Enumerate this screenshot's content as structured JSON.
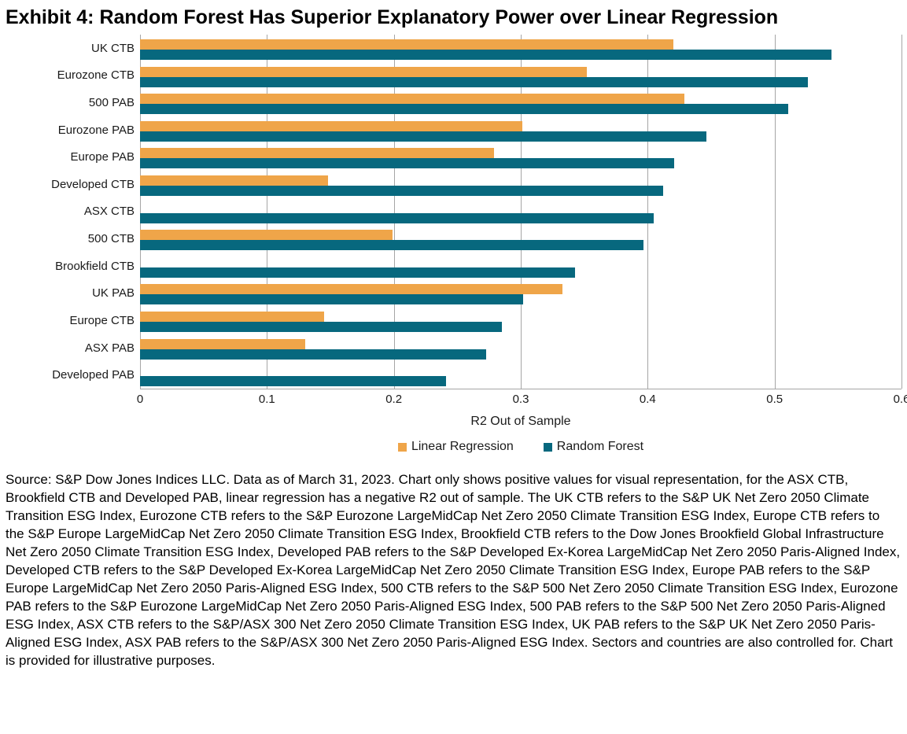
{
  "title": "Exhibit 4: Random Forest Has Superior Explanatory Power over Linear Regression",
  "chart_data": {
    "type": "bar",
    "orientation": "horizontal",
    "title": "Exhibit 4: Random Forest Has Superior Explanatory Power over Linear Regression",
    "xlabel": "R2 Out of Sample",
    "xlim": [
      0,
      0.6
    ],
    "xticks": [
      0,
      0.1,
      0.2,
      0.3,
      0.4,
      0.5,
      0.6
    ],
    "xtick_labels": [
      "0",
      "0.1",
      "0.2",
      "0.3",
      "0.4",
      "0.5",
      "0.6"
    ],
    "grid": "vertical",
    "legend_position": "bottom",
    "categories": [
      "UK CTB",
      "Eurozone CTB",
      "500 PAB",
      "Eurozone PAB",
      "Europe PAB",
      "Developed CTB",
      "ASX CTB",
      "500 CTB",
      "Brookfield CTB",
      "UK PAB",
      "Europe CTB",
      "ASX PAB",
      "Developed PAB"
    ],
    "series": [
      {
        "name": "Linear Regression",
        "color": "#EFA549",
        "values": [
          0.42,
          0.352,
          0.429,
          0.301,
          0.279,
          0.148,
          null,
          0.199,
          null,
          0.333,
          0.145,
          0.13,
          null
        ]
      },
      {
        "name": "Random Forest",
        "color": "#07687E",
        "values": [
          0.545,
          0.526,
          0.511,
          0.446,
          0.421,
          0.412,
          0.405,
          0.397,
          0.343,
          0.302,
          0.285,
          0.273,
          0.241
        ]
      }
    ],
    "note": "null values indicate negative R2 not shown on chart"
  },
  "colors": {
    "gridline": "#a6a6a6"
  },
  "footnote": "Source: S&P Dow Jones Indices LLC. Data as of March 31, 2023. Chart only shows positive values for visual representation, for the ASX CTB, Brookfield CTB and Developed PAB, linear regression has a negative R2 out of sample. The UK CTB refers to the S&P UK Net Zero 2050 Climate Transition ESG Index, Eurozone CTB refers to the S&P Eurozone LargeMidCap Net Zero 2050 Climate Transition ESG Index, Europe CTB refers to the S&P Europe LargeMidCap Net Zero 2050 Climate Transition ESG Index, Brookfield CTB refers to the Dow Jones Brookfield Global Infrastructure Net Zero 2050 Climate Transition ESG Index, Developed PAB refers to the S&P Developed Ex-Korea LargeMidCap Net Zero 2050 Paris-Aligned Index, Developed CTB refers to the S&P Developed Ex-Korea LargeMidCap Net Zero 2050 Climate Transition ESG Index, Europe PAB refers to the S&P Europe LargeMidCap Net Zero 2050 Paris-Aligned ESG Index, 500 CTB refers to the S&P 500 Net Zero 2050 Climate Transition ESG Index, Eurozone PAB refers to the S&P Eurozone LargeMidCap Net Zero 2050 Paris-Aligned ESG Index, 500 PAB refers to the S&P 500 Net Zero 2050 Paris-Aligned ESG Index, ASX CTB refers to the S&P/ASX 300 Net Zero 2050 Climate Transition ESG Index, UK PAB refers to the S&P UK Net Zero 2050 Paris-Aligned ESG Index, ASX PAB refers to the S&P/ASX 300 Net Zero 2050 Paris-Aligned ESG Index. Sectors and countries are also controlled for. Chart is provided for illustrative purposes."
}
